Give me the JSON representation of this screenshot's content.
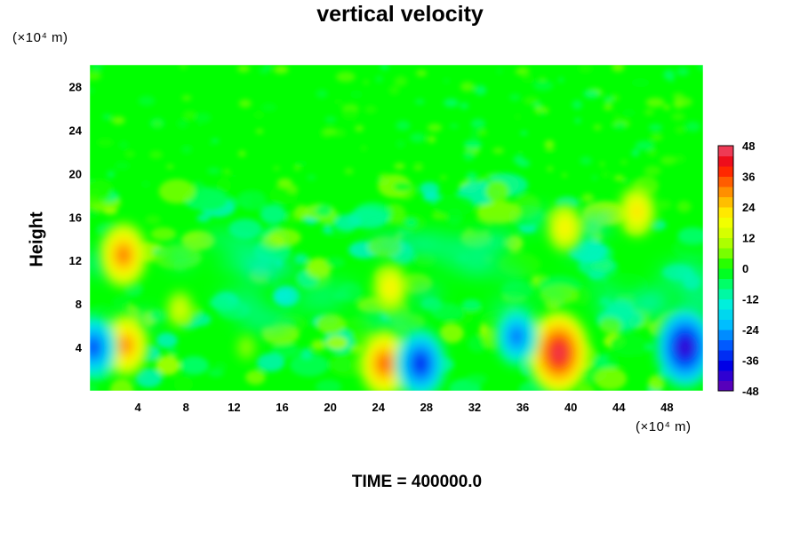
{
  "chart_data": {
    "type": "heatmap",
    "title": "vertical velocity",
    "xlabel": "",
    "ylabel": "Height",
    "x_unit": "(×10⁴ m)",
    "y_unit": "(×10⁴ m)",
    "xlim": [
      0,
      51
    ],
    "ylim": [
      0,
      30
    ],
    "x_ticks": [
      4,
      8,
      12,
      16,
      20,
      24,
      28,
      32,
      36,
      40,
      44,
      48
    ],
    "y_ticks": [
      4,
      8,
      12,
      16,
      20,
      24,
      28
    ],
    "colorbar": {
      "ticks": [
        48,
        36,
        24,
        12,
        0,
        -12,
        -24,
        -36,
        -48
      ],
      "range": [
        -48,
        48
      ],
      "step": 4
    },
    "features": [
      {
        "x": 39.0,
        "y": 3.5,
        "value": 52
      },
      {
        "x": 24.5,
        "y": 2.5,
        "value": 40
      },
      {
        "x": 3.0,
        "y": 4.2,
        "value": 36
      },
      {
        "x": 2.8,
        "y": 12.5,
        "value": 38
      },
      {
        "x": 27.5,
        "y": 2.5,
        "value": -42
      },
      {
        "x": 49.5,
        "y": 4.0,
        "value": -50
      },
      {
        "x": 0.3,
        "y": 4.0,
        "value": -38
      },
      {
        "x": 35.5,
        "y": 5.0,
        "value": -34
      },
      {
        "x": 45.5,
        "y": 16.5,
        "value": 28
      },
      {
        "x": 39.5,
        "y": 15.0,
        "value": 26
      },
      {
        "x": 25.0,
        "y": 9.5,
        "value": 26
      },
      {
        "x": 7.5,
        "y": 7.5,
        "value": 18
      },
      {
        "x": 13.0,
        "y": 4.0,
        "value": 10
      }
    ]
  },
  "footer": {
    "time_label": "TIME = 400000.0"
  }
}
